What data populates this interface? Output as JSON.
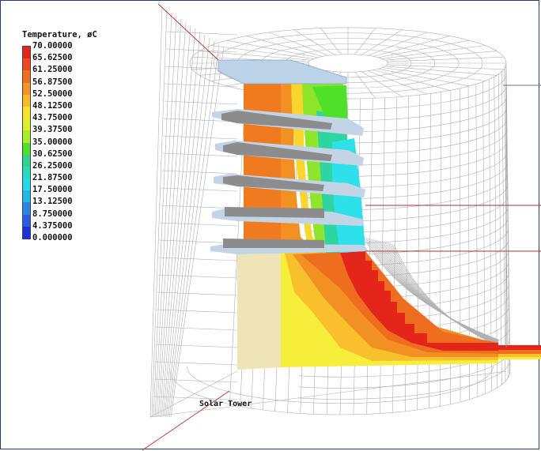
{
  "legend": {
    "title": "Temperature, øC",
    "values": [
      "70.00000",
      "65.62500",
      "61.25000",
      "56.87500",
      "52.50000",
      "48.12500",
      "43.75000",
      "39.37500",
      "35.00000",
      "30.62500",
      "26.25000",
      "21.87500",
      "17.50000",
      "13.12500",
      "8.750000",
      "4.375000",
      "0.000000"
    ],
    "colors": [
      "#e4261a",
      "#ec4a1c",
      "#f06f1e",
      "#f69324",
      "#f8b92a",
      "#fbe230",
      "#d9f02f",
      "#a8ee2c",
      "#4fe02a",
      "#2ed58a",
      "#29d9c0",
      "#26d8e8",
      "#27b6ea",
      "#2a86e4",
      "#2a5be0",
      "#1f2fd8"
    ]
  },
  "labels": {
    "tower": "Solar Tower"
  },
  "palette": {
    "mesh": "#a9a9a9",
    "floor_plate": "#b8c9dc",
    "beam": "#8a8a8a",
    "tan_wall": "#efe3b8",
    "outline_red": "#b03030"
  }
}
